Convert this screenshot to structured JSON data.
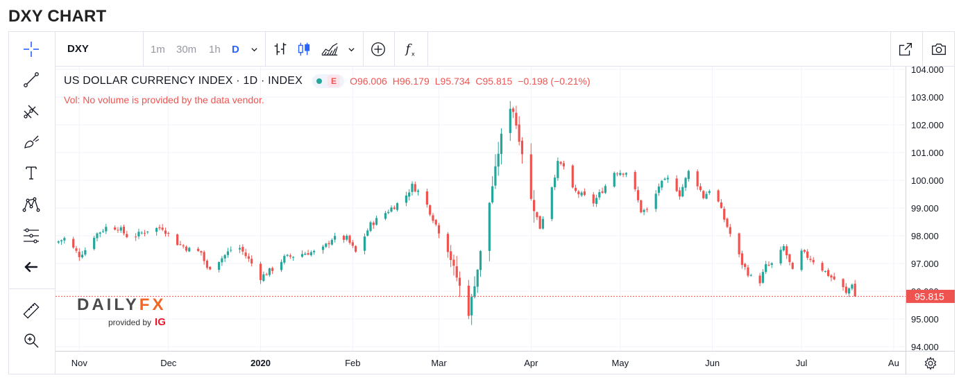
{
  "page": {
    "title": "DXY CHART"
  },
  "toolbar": {
    "symbol": "DXY",
    "intervals": [
      "1m",
      "30m",
      "1h",
      "D"
    ],
    "active_interval": "D"
  },
  "legend": {
    "title": "US DOLLAR CURRENCY INDEX · 1D · INDEX",
    "badge": "E",
    "o_label": "O",
    "o": "96.006",
    "h_label": "H",
    "h": "96.179",
    "l_label": "L",
    "l": "95.734",
    "c_label": "C",
    "c": "95.815",
    "change": "−0.198 (−0.21%)",
    "vol_message": "Vol: No volume is provided by the data vendor."
  },
  "branding": {
    "logo_daily": "DAILY",
    "logo_fx": "FX",
    "provided_by": "provided by",
    "ig": "IG"
  },
  "colors": {
    "up": "#26a69a",
    "down": "#ef5350",
    "accent": "#2962ff",
    "grid": "#f0f3fa"
  },
  "icons": [
    "crosshair-icon",
    "trend-line-icon",
    "pitchfork-icon",
    "brush-icon",
    "text-icon",
    "pattern-icon",
    "position-icon",
    "back-arrow-icon",
    "ruler-icon",
    "zoom-in-icon",
    "bar-style-icon",
    "candle-style-icon",
    "area-style-icon",
    "add-indicator-icon",
    "function-icon",
    "popout-icon",
    "camera-icon",
    "settings-icon"
  ],
  "chart_data": {
    "type": "candlestick",
    "title": "US DOLLAR CURRENCY INDEX · 1D · INDEX",
    "ylim": [
      93.85,
      104.1
    ],
    "y_ticks": [
      "94.000",
      "95.000",
      "96.000",
      "97.000",
      "98.000",
      "99.000",
      "100.000",
      "101.000",
      "102.000",
      "103.000",
      "104.000"
    ],
    "x_ticks": [
      {
        "label": "Nov",
        "day": 5
      },
      {
        "label": "Dec",
        "day": 35
      },
      {
        "label": "2020",
        "day": 66
      },
      {
        "label": "Feb",
        "day": 97
      },
      {
        "label": "Mar",
        "day": 126
      },
      {
        "label": "Apr",
        "day": 157
      },
      {
        "label": "May",
        "day": 187
      },
      {
        "label": "Jun",
        "day": 218
      },
      {
        "label": "Jul",
        "day": 248
      },
      {
        "label": "Au",
        "day": 279
      }
    ],
    "last_price": "95.815",
    "last_value": 95.815,
    "anchors": [
      [
        -2,
        97.8
      ],
      [
        0,
        97.9
      ],
      [
        5,
        97.3
      ],
      [
        7,
        97.5
      ],
      [
        10,
        98.0
      ],
      [
        14,
        98.3
      ],
      [
        18,
        98.3
      ],
      [
        22,
        97.9
      ],
      [
        28,
        98.2
      ],
      [
        33,
        98.3
      ],
      [
        37,
        97.8
      ],
      [
        42,
        97.5
      ],
      [
        46,
        97.4
      ],
      [
        48,
        96.8
      ],
      [
        53,
        97.2
      ],
      [
        58,
        97.7
      ],
      [
        63,
        97.0
      ],
      [
        66,
        96.5
      ],
      [
        70,
        96.8
      ],
      [
        74,
        97.2
      ],
      [
        78,
        97.3
      ],
      [
        82,
        97.4
      ],
      [
        86,
        97.4
      ],
      [
        90,
        97.9
      ],
      [
        95,
        97.9
      ],
      [
        98,
        97.4
      ],
      [
        103,
        98.4
      ],
      [
        110,
        99.0
      ],
      [
        114,
        99.3
      ],
      [
        117,
        99.8
      ],
      [
        119,
        99.6
      ],
      [
        122,
        99.1
      ],
      [
        125,
        98.4
      ],
      [
        129,
        97.5
      ],
      [
        132,
        96.5
      ],
      [
        136,
        95.2
      ],
      [
        139,
        96.8
      ],
      [
        142,
        98.6
      ],
      [
        146,
        101.0
      ],
      [
        149,
        102.8
      ],
      [
        151,
        102.5
      ],
      [
        154,
        101.0
      ],
      [
        157,
        99.3
      ],
      [
        160,
        98.3
      ],
      [
        163,
        99.4
      ],
      [
        166,
        100.6
      ],
      [
        168,
        100.5
      ],
      [
        170,
        99.7
      ],
      [
        175,
        99.4
      ],
      [
        178,
        99.2
      ],
      [
        182,
        99.8
      ],
      [
        185,
        100.3
      ],
      [
        189,
        100.3
      ],
      [
        192,
        99.6
      ],
      [
        194,
        98.9
      ],
      [
        197,
        98.9
      ],
      [
        200,
        99.8
      ],
      [
        204,
        100.1
      ],
      [
        207,
        99.5
      ],
      [
        210,
        100.3
      ],
      [
        212,
        100.1
      ],
      [
        215,
        99.4
      ],
      [
        218,
        99.8
      ],
      [
        222,
        98.6
      ],
      [
        225,
        97.8
      ],
      [
        228,
        97.0
      ],
      [
        231,
        96.5
      ],
      [
        233,
        96.1
      ],
      [
        236,
        96.9
      ],
      [
        239,
        97.0
      ],
      [
        242,
        97.6
      ],
      [
        245,
        96.7
      ],
      [
        248,
        97.4
      ],
      [
        252,
        97.1
      ],
      [
        255,
        96.8
      ],
      [
        258,
        96.5
      ],
      [
        261,
        96.3
      ],
      [
        263,
        95.9
      ],
      [
        265,
        96.3
      ],
      [
        267,
        95.82
      ]
    ]
  }
}
